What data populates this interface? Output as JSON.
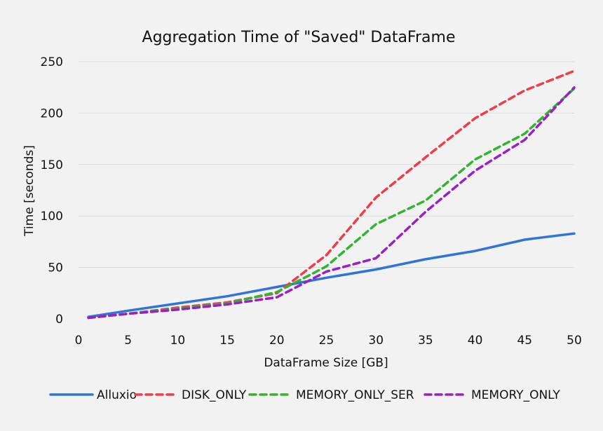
{
  "chart_data": {
    "type": "line",
    "title": "Aggregation Time of \"Saved\" DataFrame",
    "xlabel": "DataFrame Size [GB]",
    "ylabel": "Time [seconds]",
    "xlim": [
      0,
      50
    ],
    "ylim": [
      0,
      250
    ],
    "xticks": [
      "0",
      "5",
      "10",
      "15",
      "20",
      "25",
      "30",
      "35",
      "40",
      "45",
      "50"
    ],
    "yticks": [
      "0",
      "50",
      "100",
      "150",
      "200",
      "250"
    ],
    "grid": "horizontal",
    "legend_position": "bottom",
    "x": [
      1,
      5,
      10,
      15,
      20,
      25,
      30,
      35,
      40,
      45,
      50
    ],
    "series": [
      {
        "name": "Alluxio",
        "color": "#2f74d8",
        "style": "solid",
        "values": [
          2,
          8,
          15,
          22,
          31,
          40,
          48,
          58,
          66,
          77,
          83
        ]
      },
      {
        "name": "DISK_ONLY",
        "color": "#f03c4a",
        "style": "dashed",
        "values": [
          1,
          5,
          11,
          16,
          25,
          62,
          118,
          157,
          195,
          222,
          241
        ]
      },
      {
        "name": "MEMORY_ONLY_SER",
        "color": "#2fb52f",
        "style": "dashed",
        "values": [
          1,
          5,
          10,
          15,
          26,
          51,
          92,
          115,
          155,
          180,
          224
        ]
      },
      {
        "name": "MEMORY_ONLY",
        "color": "#9a1fc7",
        "style": "dashed",
        "values": [
          1,
          5,
          9,
          14,
          21,
          46,
          59,
          104,
          144,
          174,
          225
        ]
      }
    ]
  }
}
